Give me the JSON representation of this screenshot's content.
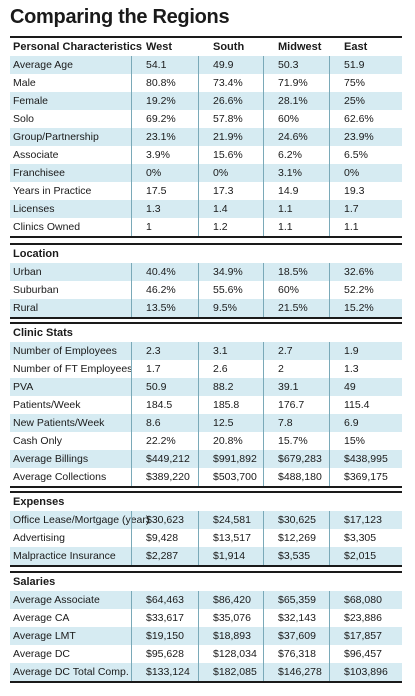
{
  "title": "Comparing the Regions",
  "columns": [
    "West",
    "South",
    "Midwest",
    "East"
  ],
  "sections": [
    {
      "heading": "Personal Characteristics",
      "rows": [
        {
          "label": "Average Age",
          "values": [
            "54.1",
            "49.9",
            "50.3",
            "51.9"
          ]
        },
        {
          "label": "Male",
          "values": [
            "80.8%",
            "73.4%",
            "71.9%",
            "75%"
          ]
        },
        {
          "label": "Female",
          "values": [
            "19.2%",
            "26.6%",
            "28.1%",
            "25%"
          ]
        },
        {
          "label": "Solo",
          "values": [
            "69.2%",
            "57.8%",
            "60%",
            "62.6%"
          ]
        },
        {
          "label": "Group/Partnership",
          "values": [
            "23.1%",
            "21.9%",
            "24.6%",
            "23.9%"
          ]
        },
        {
          "label": "Associate",
          "values": [
            "3.9%",
            "15.6%",
            "6.2%",
            "6.5%"
          ]
        },
        {
          "label": "Franchisee",
          "values": [
            "0%",
            "0%",
            "3.1%",
            "0%"
          ]
        },
        {
          "label": "Years in Practice",
          "values": [
            "17.5",
            "17.3",
            "14.9",
            "19.3"
          ]
        },
        {
          "label": "Licenses",
          "values": [
            "1.3",
            "1.4",
            "1.1",
            "1.7"
          ]
        },
        {
          "label": "Clinics Owned",
          "values": [
            "1",
            "1.2",
            "1.1",
            "1.1"
          ]
        }
      ]
    },
    {
      "heading": "Location",
      "rows": [
        {
          "label": "Urban",
          "values": [
            "40.4%",
            "34.9%",
            "18.5%",
            "32.6%"
          ]
        },
        {
          "label": "Suburban",
          "values": [
            "46.2%",
            "55.6%",
            "60%",
            "52.2%"
          ]
        },
        {
          "label": "Rural",
          "values": [
            "13.5%",
            "9.5%",
            "21.5%",
            "15.2%"
          ]
        }
      ]
    },
    {
      "heading": "Clinic Stats",
      "rows": [
        {
          "label": "Number of Employees",
          "values": [
            "2.3",
            "3.1",
            "2.7",
            "1.9"
          ]
        },
        {
          "label": "Number of FT Employees",
          "values": [
            "1.7",
            "2.6",
            "2",
            "1.3"
          ]
        },
        {
          "label": "PVA",
          "values": [
            "50.9",
            "88.2",
            "39.1",
            "49"
          ]
        },
        {
          "label": "Patients/Week",
          "values": [
            "184.5",
            "185.8",
            "176.7",
            "115.4"
          ]
        },
        {
          "label": "New Patients/Week",
          "values": [
            "8.6",
            "12.5",
            "7.8",
            "6.9"
          ]
        },
        {
          "label": "Cash Only",
          "values": [
            "22.2%",
            "20.8%",
            "15.7%",
            "15%"
          ]
        },
        {
          "label": "Average Billings",
          "values": [
            "$449,212",
            "$991,892",
            "$679,283",
            "$438,995"
          ]
        },
        {
          "label": "Average Collections",
          "values": [
            "$389,220",
            "$503,700",
            "$488,180",
            "$369,175"
          ]
        }
      ]
    },
    {
      "heading": "Expenses",
      "rows": [
        {
          "label": "Office Lease/Mortgage (year)",
          "values": [
            "$30,623",
            "$24,581",
            "$30,625",
            "$17,123"
          ]
        },
        {
          "label": "Advertising",
          "values": [
            "$9,428",
            "$13,517",
            "$12,269",
            "$3,305"
          ]
        },
        {
          "label": "Malpractice Insurance",
          "values": [
            "$2,287",
            "$1,914",
            "$3,535",
            "$2,015"
          ]
        }
      ]
    },
    {
      "heading": "Salaries",
      "rows": [
        {
          "label": "Average Associate",
          "values": [
            "$64,463",
            "$86,420",
            "$65,359",
            "$68,080"
          ]
        },
        {
          "label": "Average CA",
          "values": [
            "$33,617",
            "$35,076",
            "$32,143",
            "$23,886"
          ]
        },
        {
          "label": "Average LMT",
          "values": [
            "$19,150",
            "$18,893",
            "$37,609",
            "$17,857"
          ]
        },
        {
          "label": "Average DC",
          "values": [
            "$95,628",
            "$128,034",
            "$76,318",
            "$96,457"
          ]
        },
        {
          "label": "Average DC Total Comp.",
          "values": [
            "$133,124",
            "$182,085",
            "$146,278",
            "$103,896"
          ]
        }
      ]
    }
  ],
  "colors": {
    "row_shade": "#d6ebf2",
    "rule": "#1a1a1a",
    "divider": "#7aa9b8"
  }
}
